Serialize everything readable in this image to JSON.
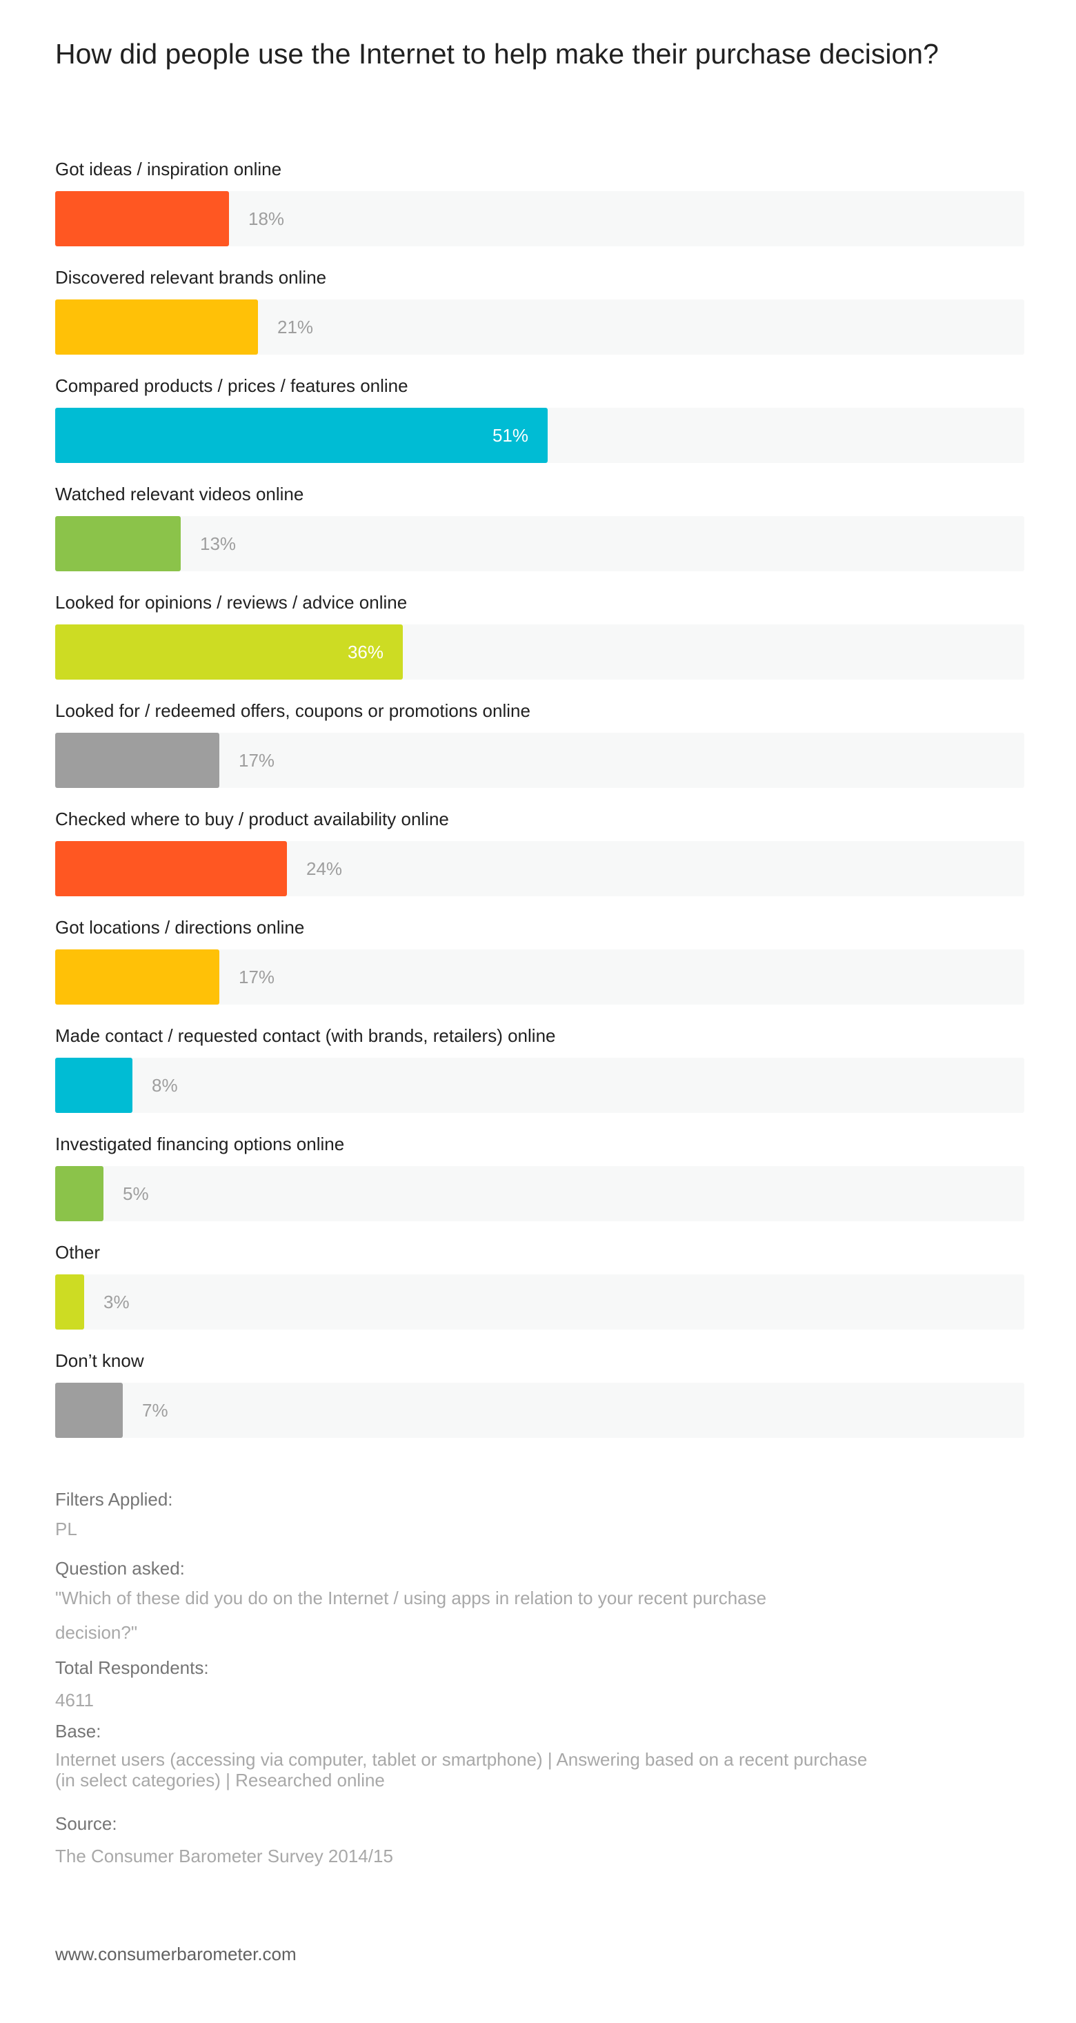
{
  "title": "How did people use the Internet to help make their purchase decision?",
  "chart_data": {
    "type": "bar",
    "orientation": "horizontal",
    "title": "How did people use the Internet to help make their purchase decision?",
    "xlim": [
      0,
      100
    ],
    "unit": "%",
    "categories": [
      "Got ideas / inspiration online",
      "Discovered relevant brands online",
      "Compared products / prices / features online",
      "Watched relevant videos online",
      "Looked for opinions / reviews / advice online",
      "Looked for / redeemed offers, coupons or promotions online",
      "Checked where to buy / product availability online",
      "Got locations / directions online",
      "Made contact / requested contact (with brands, retailers) online",
      "Investigated financing options online",
      "Other",
      "Don’t know"
    ],
    "values": [
      18,
      21,
      51,
      13,
      36,
      17,
      24,
      17,
      8,
      5,
      3,
      7
    ],
    "value_labels": [
      "18%",
      "21%",
      "51%",
      "13%",
      "36%",
      "17%",
      "24%",
      "17%",
      "8%",
      "5%",
      "3%",
      "7%"
    ],
    "colors": [
      "#ff5722",
      "#ffc107",
      "#00bcd4",
      "#8bc34a",
      "#cddc23",
      "#9e9e9e",
      "#ff5722",
      "#ffc107",
      "#00bcd4",
      "#8bc34a",
      "#cddc23",
      "#9e9e9e"
    ],
    "track_color": "#f7f8f8",
    "grid": false,
    "legend": "none"
  },
  "footer": {
    "filters_label": "Filters Applied:",
    "filters_value": "PL",
    "question_label": "Question asked:",
    "question_line1": "\"Which of these did you do on the Internet / using apps in relation to your recent purchase",
    "question_line2": "decision?\"",
    "respondents_label": "Total Respondents:",
    "respondents_value": "4611",
    "base_label": "Base:",
    "base_line1": "Internet users (accessing via computer, tablet or smartphone) | Answering based on a recent purchase",
    "base_line2": "(in select categories) | Researched online",
    "source_label": "Source:",
    "source_value": "The Consumer Barometer Survey 2014/15"
  },
  "website": "www.consumerbarometer.com"
}
